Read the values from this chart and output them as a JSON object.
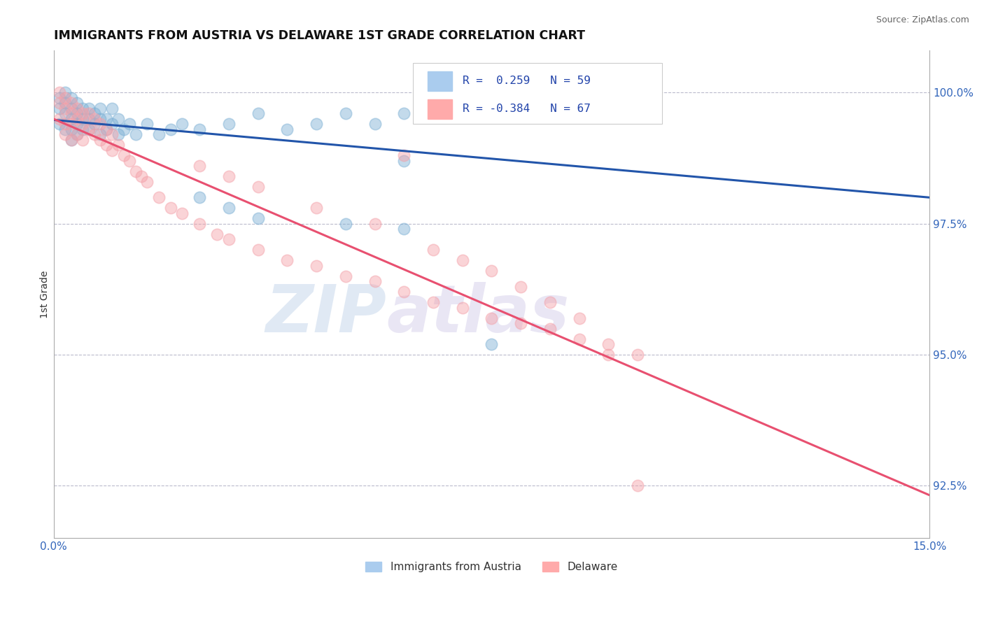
{
  "title": "IMMIGRANTS FROM AUSTRIA VS DELAWARE 1ST GRADE CORRELATION CHART",
  "source": "Source: ZipAtlas.com",
  "ylabel": "1st Grade",
  "ytick_labels": [
    "92.5%",
    "95.0%",
    "97.5%",
    "100.0%"
  ],
  "ytick_values": [
    0.925,
    0.95,
    0.975,
    1.0
  ],
  "xmin": 0.0,
  "xmax": 0.15,
  "ymin": 0.915,
  "ymax": 1.008,
  "legend_r_blue": "0.259",
  "legend_n_blue": "59",
  "legend_r_pink": "-0.384",
  "legend_n_pink": "67",
  "blue_color": "#7BAFD4",
  "pink_color": "#F4A0A8",
  "trendline_blue": "#2255AA",
  "trendline_pink": "#E85070",
  "watermark_zip": "ZIP",
  "watermark_atlas": "atlas",
  "legend_label_blue": "Immigrants from Austria",
  "legend_label_pink": "Delaware",
  "blue_x": [
    0.001,
    0.001,
    0.001,
    0.002,
    0.002,
    0.002,
    0.002,
    0.003,
    0.003,
    0.003,
    0.003,
    0.003,
    0.004,
    0.004,
    0.004,
    0.004,
    0.005,
    0.005,
    0.005,
    0.006,
    0.006,
    0.006,
    0.007,
    0.007,
    0.008,
    0.008,
    0.008,
    0.009,
    0.009,
    0.01,
    0.01,
    0.011,
    0.011,
    0.012,
    0.013,
    0.014,
    0.016,
    0.018,
    0.02,
    0.022,
    0.025,
    0.03,
    0.035,
    0.04,
    0.045,
    0.05,
    0.055,
    0.06,
    0.07,
    0.08,
    0.09,
    0.1,
    0.06,
    0.025,
    0.03,
    0.035,
    0.05,
    0.06,
    0.075
  ],
  "blue_y": [
    0.999,
    0.997,
    0.994,
    1.0,
    0.998,
    0.996,
    0.993,
    0.999,
    0.997,
    0.995,
    0.993,
    0.991,
    0.998,
    0.996,
    0.994,
    0.992,
    0.997,
    0.995,
    0.993,
    0.997,
    0.995,
    0.993,
    0.996,
    0.994,
    0.997,
    0.995,
    0.992,
    0.995,
    0.993,
    0.997,
    0.994,
    0.995,
    0.992,
    0.993,
    0.994,
    0.992,
    0.994,
    0.992,
    0.993,
    0.994,
    0.993,
    0.994,
    0.996,
    0.993,
    0.994,
    0.996,
    0.994,
    0.996,
    0.997,
    0.997,
    0.998,
    1.0,
    0.987,
    0.98,
    0.978,
    0.976,
    0.975,
    0.974,
    0.952
  ],
  "pink_x": [
    0.001,
    0.001,
    0.001,
    0.002,
    0.002,
    0.002,
    0.002,
    0.003,
    0.003,
    0.003,
    0.003,
    0.004,
    0.004,
    0.004,
    0.005,
    0.005,
    0.005,
    0.006,
    0.006,
    0.007,
    0.007,
    0.008,
    0.008,
    0.009,
    0.009,
    0.01,
    0.01,
    0.011,
    0.012,
    0.013,
    0.014,
    0.015,
    0.016,
    0.018,
    0.02,
    0.022,
    0.025,
    0.028,
    0.03,
    0.035,
    0.04,
    0.045,
    0.05,
    0.055,
    0.06,
    0.065,
    0.07,
    0.075,
    0.08,
    0.085,
    0.09,
    0.095,
    0.1,
    0.06,
    0.025,
    0.03,
    0.035,
    0.045,
    0.055,
    0.065,
    0.07,
    0.075,
    0.08,
    0.085,
    0.09,
    0.095,
    0.1
  ],
  "pink_y": [
    1.0,
    0.998,
    0.995,
    0.999,
    0.997,
    0.994,
    0.992,
    0.998,
    0.996,
    0.994,
    0.991,
    0.997,
    0.995,
    0.992,
    0.996,
    0.994,
    0.991,
    0.996,
    0.993,
    0.995,
    0.992,
    0.994,
    0.991,
    0.993,
    0.99,
    0.992,
    0.989,
    0.99,
    0.988,
    0.987,
    0.985,
    0.984,
    0.983,
    0.98,
    0.978,
    0.977,
    0.975,
    0.973,
    0.972,
    0.97,
    0.968,
    0.967,
    0.965,
    0.964,
    0.962,
    0.96,
    0.959,
    0.957,
    0.956,
    0.955,
    0.953,
    0.952,
    0.95,
    0.988,
    0.986,
    0.984,
    0.982,
    0.978,
    0.975,
    0.97,
    0.968,
    0.966,
    0.963,
    0.96,
    0.957,
    0.95,
    0.925
  ]
}
